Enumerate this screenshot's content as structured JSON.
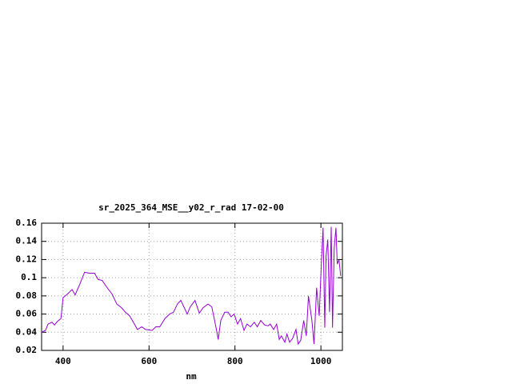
{
  "chart_data": {
    "type": "line",
    "title": "sr_2025_364_MSE__y02_r_rad 17-02-00",
    "x_label": "nm",
    "xlim": [
      350,
      1050
    ],
    "xticks": [
      400,
      600,
      800,
      1000
    ],
    "ylim": [
      0.02,
      0.16
    ],
    "yticks": [
      0.02,
      0.04,
      0.06,
      0.08,
      0.1,
      0.12,
      0.14,
      0.16
    ],
    "grid": true,
    "series": [
      {
        "color": "#9400d3",
        "x": [
          350,
          359,
          365,
          374,
          380,
          387,
          395,
          400,
          410,
          421,
          428,
          439,
          450,
          462,
          473,
          482,
          491,
          501,
          514,
          525,
          536,
          545,
          555,
          566,
          573,
          583,
          592,
          607,
          616,
          625,
          637,
          648,
          657,
          666,
          674,
          681,
          689,
          696,
          707,
          717,
          726,
          737,
          746,
          756,
          761,
          767,
          776,
          784,
          791,
          798,
          806,
          813,
          821,
          828,
          836,
          845,
          852,
          860,
          869,
          877,
          882,
          890,
          897,
          903,
          908,
          916,
          921,
          927,
          934,
          942,
          947,
          953,
          960,
          966,
          971,
          979,
          984,
          990,
          996,
          1001,
          1005,
          1009,
          1012,
          1016,
          1020,
          1024,
          1027,
          1031,
          1035,
          1038,
          1042,
          1046
        ],
        "values": [
          0.04,
          0.042,
          0.049,
          0.051,
          0.048,
          0.052,
          0.055,
          0.078,
          0.082,
          0.087,
          0.081,
          0.093,
          0.106,
          0.105,
          0.105,
          0.098,
          0.097,
          0.09,
          0.082,
          0.071,
          0.067,
          0.062,
          0.058,
          0.049,
          0.043,
          0.046,
          0.043,
          0.042,
          0.046,
          0.046,
          0.055,
          0.06,
          0.062,
          0.071,
          0.075,
          0.068,
          0.06,
          0.068,
          0.075,
          0.061,
          0.067,
          0.071,
          0.068,
          0.045,
          0.032,
          0.053,
          0.062,
          0.062,
          0.057,
          0.06,
          0.049,
          0.055,
          0.042,
          0.049,
          0.046,
          0.051,
          0.046,
          0.053,
          0.048,
          0.047,
          0.049,
          0.043,
          0.049,
          0.032,
          0.036,
          0.029,
          0.038,
          0.029,
          0.033,
          0.043,
          0.027,
          0.031,
          0.053,
          0.036,
          0.08,
          0.053,
          0.027,
          0.089,
          0.058,
          0.115,
          0.155,
          0.045,
          0.124,
          0.142,
          0.062,
          0.156,
          0.045,
          0.133,
          0.155,
          0.115,
          0.12,
          0.102
        ]
      }
    ]
  }
}
